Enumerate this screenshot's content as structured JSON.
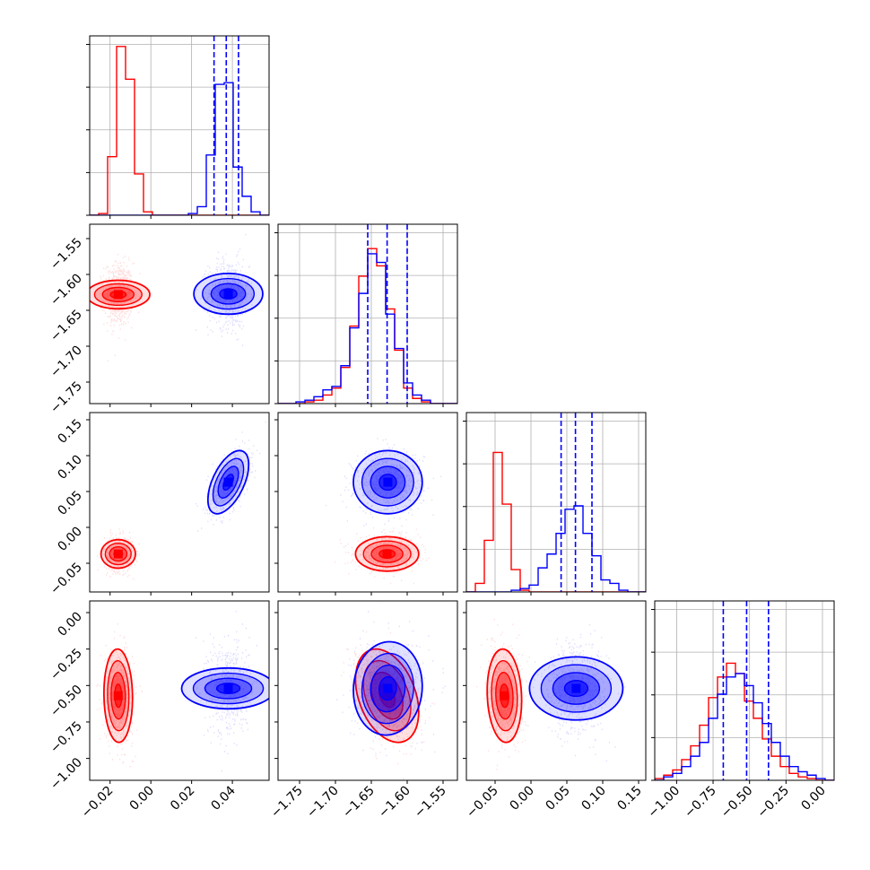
{
  "chart_data": {
    "type": "corner",
    "description_free": true,
    "colors": {
      "series_a": "#ff0000",
      "series_b": "#0000ff",
      "grid": "#b0b0b0"
    },
    "series": [
      {
        "color": "#ff0000",
        "mean": [
          -0.016,
          -1.628,
          -0.037,
          -0.57
        ],
        "sigma": [
          0.0035,
          0.022,
          0.012,
          0.16
        ],
        "rho": {
          "0-3": -0.05,
          "1-3": -0.35,
          "2-3": -0.1
        }
      },
      {
        "color": "#0000ff",
        "mean": [
          0.038,
          -1.627,
          0.063,
          -0.52
        ],
        "sigma": [
          0.005,
          0.024,
          0.022,
          0.16
        ],
        "rho": {
          "0-2": 0.55,
          "1-3": 0.05
        }
      }
    ],
    "axes": [
      {
        "range": [
          -0.03,
          0.058
        ],
        "ticks": [
          -0.02,
          0.0,
          0.02,
          0.04
        ],
        "tick_labels": [
          "−0.02",
          "0.00",
          "0.02",
          "0.04"
        ]
      },
      {
        "range": [
          -1.78,
          -1.53
        ],
        "ticks": [
          -1.75,
          -1.7,
          -1.65,
          -1.6,
          -1.55
        ],
        "tick_labels": [
          "−1.75",
          "−1.70",
          "−1.65",
          "−1.60",
          "−1.55"
        ]
      },
      {
        "range": [
          -0.09,
          0.16
        ],
        "ticks": [
          -0.05,
          0.0,
          0.05,
          0.1,
          0.15
        ],
        "tick_labels": [
          "−0.05",
          "0.00",
          "0.05",
          "0.10",
          "0.15"
        ]
      },
      {
        "range": [
          -1.15,
          0.08
        ],
        "ticks": [
          -1.0,
          -0.75,
          -0.5,
          -0.25,
          0.0
        ],
        "tick_labels": [
          "−1.00",
          "−0.75",
          "−0.50",
          "−0.25",
          "0.00"
        ]
      }
    ],
    "quantile_lines": [
      [
        0.031,
        0.037,
        0.043
      ],
      [
        -1.655,
        -1.628,
        -1.6
      ],
      [
        0.042,
        0.062,
        0.085
      ],
      [
        -0.68,
        -0.52,
        -0.37
      ]
    ],
    "histograms": [
      {
        "bins": [
          -0.03,
          -0.0256,
          -0.0212,
          -0.0168,
          -0.0124,
          -0.008,
          -0.0036,
          0.0008,
          0.0052,
          0.0096,
          0.014,
          0.0184,
          0.0228,
          0.0272,
          0.0316,
          0.036,
          0.0404,
          0.0448,
          0.0492,
          0.0536,
          0.058
        ],
        "series_a": [
          0,
          0.01,
          0.34,
          0.98,
          0.79,
          0.24,
          0.02,
          0,
          0,
          0,
          0,
          0,
          0,
          0,
          0,
          0,
          0,
          0,
          0,
          0
        ],
        "series_b": [
          0,
          0,
          0,
          0,
          0,
          0,
          0,
          0,
          0,
          0,
          0,
          0.01,
          0.05,
          0.35,
          0.76,
          0.77,
          0.28,
          0.11,
          0.02,
          0
        ]
      },
      {
        "bins": [
          -1.78,
          -1.7675,
          -1.755,
          -1.7425,
          -1.73,
          -1.7175,
          -1.705,
          -1.6925,
          -1.68,
          -1.6675,
          -1.655,
          -1.6425,
          -1.63,
          -1.6175,
          -1.605,
          -1.5925,
          -1.58,
          -1.5675,
          -1.555,
          -1.5425,
          -1.53
        ],
        "series_a": [
          0,
          0,
          0,
          0.01,
          0.02,
          0.05,
          0.09,
          0.21,
          0.45,
          0.74,
          0.9,
          0.8,
          0.55,
          0.31,
          0.09,
          0.03,
          0.01,
          0,
          0,
          0
        ],
        "series_b": [
          0,
          0,
          0.01,
          0.02,
          0.04,
          0.08,
          0.1,
          0.22,
          0.44,
          0.64,
          0.87,
          0.82,
          0.52,
          0.32,
          0.12,
          0.05,
          0.02,
          0,
          0,
          0
        ]
      },
      {
        "bins": [
          -0.09,
          -0.0775,
          -0.065,
          -0.0525,
          -0.04,
          -0.0275,
          -0.015,
          -0.0025,
          0.01,
          0.0225,
          0.035,
          0.0475,
          0.06,
          0.0725,
          0.085,
          0.0975,
          0.11,
          0.1225,
          0.135,
          0.1475,
          0.16
        ],
        "series_a": [
          0,
          0.05,
          0.3,
          0.81,
          0.51,
          0.13,
          0.01,
          0,
          0,
          0,
          0,
          0,
          0,
          0,
          0,
          0,
          0,
          0,
          0,
          0
        ],
        "series_b": [
          0,
          0,
          0,
          0,
          0,
          0.01,
          0.02,
          0.04,
          0.14,
          0.22,
          0.34,
          0.48,
          0.5,
          0.34,
          0.21,
          0.07,
          0.05,
          0.01,
          0,
          0
        ]
      },
      {
        "bins": [
          -1.15,
          -1.0885,
          -1.027,
          -0.9655,
          -0.904,
          -0.8425,
          -0.781,
          -0.7195,
          -0.658,
          -0.5965,
          -0.535,
          -0.4735,
          -0.412,
          -0.3505,
          -0.289,
          -0.2275,
          -0.166,
          -0.1045,
          -0.043,
          0.0185,
          0.08
        ],
        "series_a": [
          0.01,
          0.03,
          0.06,
          0.12,
          0.2,
          0.32,
          0.48,
          0.6,
          0.68,
          0.62,
          0.46,
          0.36,
          0.24,
          0.14,
          0.08,
          0.04,
          0.02,
          0.01,
          0,
          0
        ],
        "series_b": [
          0,
          0.02,
          0.04,
          0.08,
          0.14,
          0.22,
          0.36,
          0.5,
          0.6,
          0.62,
          0.55,
          0.45,
          0.33,
          0.22,
          0.14,
          0.08,
          0.05,
          0.03,
          0.01,
          0
        ]
      }
    ]
  }
}
